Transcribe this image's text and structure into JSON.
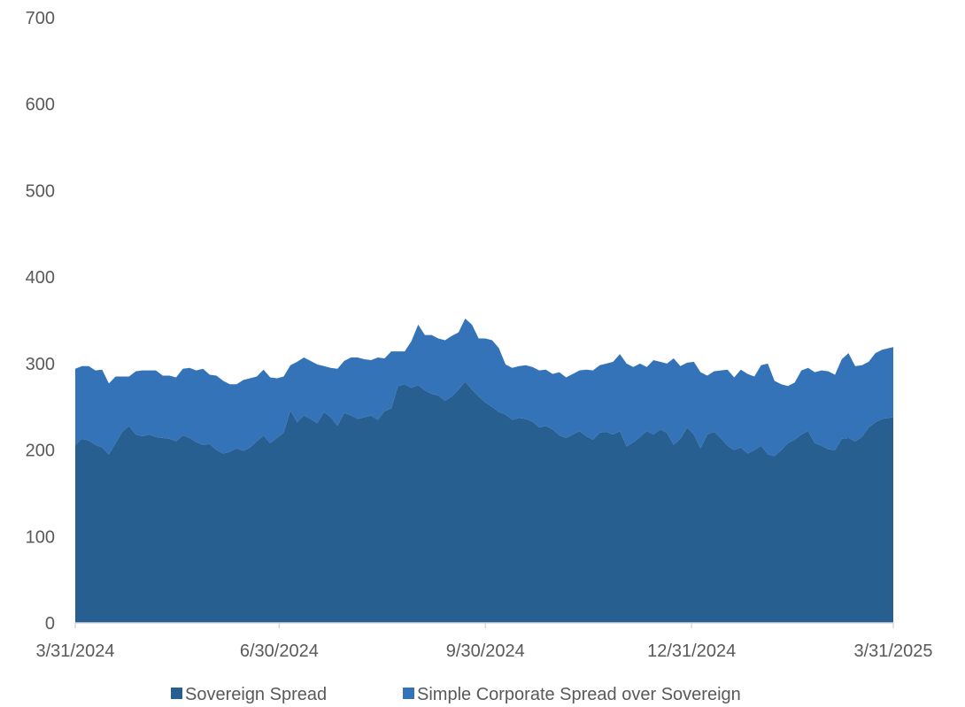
{
  "chart_data": {
    "type": "area",
    "stacked": true,
    "title": "",
    "xlabel": "",
    "ylabel": "",
    "ylim": [
      0,
      700
    ],
    "yticks": [
      0,
      100,
      200,
      300,
      400,
      500,
      600,
      700
    ],
    "xticks": [
      "3/31/2024",
      "6/30/2024",
      "9/30/2024",
      "12/31/2024",
      "3/31/2025"
    ],
    "x_range": [
      "3/31/2024",
      "3/31/2025"
    ],
    "grid": false,
    "legend_position": "bottom",
    "series": [
      {
        "name": "Sovereign Spread",
        "color": "#285f91",
        "points": [
          [
            "3/31/2024",
            206
          ],
          [
            "4/3/2024",
            213
          ],
          [
            "4/6/2024",
            211
          ],
          [
            "4/9/2024",
            206
          ],
          [
            "4/12/2024",
            203
          ],
          [
            "4/15/2024",
            195
          ],
          [
            "4/18/2024",
            208
          ],
          [
            "4/21/2024",
            221
          ],
          [
            "4/24/2024",
            228
          ],
          [
            "4/27/2024",
            218
          ],
          [
            "4/30/2024",
            216
          ],
          [
            "5/3/2024",
            218
          ],
          [
            "5/6/2024",
            215
          ],
          [
            "5/9/2024",
            214
          ],
          [
            "5/12/2024",
            213
          ],
          [
            "5/15/2024",
            210
          ],
          [
            "5/18/2024",
            217
          ],
          [
            "5/21/2024",
            214
          ],
          [
            "5/24/2024",
            209
          ],
          [
            "5/27/2024",
            206
          ],
          [
            "5/30/2024",
            207
          ],
          [
            "6/2/2024",
            200
          ],
          [
            "6/5/2024",
            196
          ],
          [
            "6/8/2024",
            198
          ],
          [
            "6/11/2024",
            202
          ],
          [
            "6/14/2024",
            199
          ],
          [
            "6/17/2024",
            203
          ],
          [
            "6/20/2024",
            210
          ],
          [
            "6/23/2024",
            217
          ],
          [
            "6/26/2024",
            208
          ],
          [
            "6/29/2024",
            214
          ],
          [
            "7/2/2024",
            220
          ],
          [
            "7/5/2024",
            246
          ],
          [
            "7/8/2024",
            232
          ],
          [
            "7/11/2024",
            240
          ],
          [
            "7/14/2024",
            236
          ],
          [
            "7/17/2024",
            231
          ],
          [
            "7/20/2024",
            244
          ],
          [
            "7/23/2024",
            238
          ],
          [
            "7/26/2024",
            228
          ],
          [
            "7/29/2024",
            243
          ],
          [
            "8/1/2024",
            240
          ],
          [
            "8/4/2024",
            236
          ],
          [
            "8/7/2024",
            238
          ],
          [
            "8/10/2024",
            240
          ],
          [
            "8/13/2024",
            235
          ],
          [
            "8/16/2024",
            245
          ],
          [
            "8/19/2024",
            248
          ],
          [
            "8/22/2024",
            274
          ],
          [
            "8/25/2024",
            276
          ],
          [
            "8/28/2024",
            272
          ],
          [
            "8/31/2024",
            275
          ],
          [
            "9/3/2024",
            269
          ],
          [
            "9/6/2024",
            265
          ],
          [
            "9/9/2024",
            263
          ],
          [
            "9/12/2024",
            257
          ],
          [
            "9/15/2024",
            262
          ],
          [
            "9/18/2024",
            270
          ],
          [
            "9/21/2024",
            279
          ],
          [
            "9/24/2024",
            270
          ],
          [
            "9/27/2024",
            262
          ],
          [
            "9/30/2024",
            255
          ],
          [
            "10/3/2024",
            250
          ],
          [
            "10/6/2024",
            244
          ],
          [
            "10/9/2024",
            241
          ],
          [
            "10/12/2024",
            235
          ],
          [
            "10/15/2024",
            237
          ],
          [
            "10/18/2024",
            236
          ],
          [
            "10/21/2024",
            233
          ],
          [
            "10/24/2024",
            226
          ],
          [
            "10/27/2024",
            228
          ],
          [
            "10/30/2024",
            224
          ],
          [
            "11/2/2024",
            217
          ],
          [
            "11/5/2024",
            214
          ],
          [
            "11/8/2024",
            218
          ],
          [
            "11/11/2024",
            222
          ],
          [
            "11/14/2024",
            216
          ],
          [
            "11/17/2024",
            212
          ],
          [
            "11/20/2024",
            220
          ],
          [
            "11/23/2024",
            221
          ],
          [
            "11/26/2024",
            218
          ],
          [
            "11/29/2024",
            222
          ],
          [
            "12/2/2024",
            204
          ],
          [
            "12/5/2024",
            209
          ],
          [
            "12/8/2024",
            215
          ],
          [
            "12/11/2024",
            222
          ],
          [
            "12/14/2024",
            218
          ],
          [
            "12/17/2024",
            224
          ],
          [
            "12/20/2024",
            220
          ],
          [
            "12/23/2024",
            206
          ],
          [
            "12/26/2024",
            213
          ],
          [
            "12/29/2024",
            226
          ],
          [
            "1/1/2025",
            218
          ],
          [
            "1/4/2025",
            202
          ],
          [
            "1/7/2025",
            218
          ],
          [
            "1/10/2025",
            221
          ],
          [
            "1/13/2025",
            214
          ],
          [
            "1/16/2025",
            205
          ],
          [
            "1/19/2025",
            200
          ],
          [
            "1/22/2025",
            203
          ],
          [
            "1/25/2025",
            196
          ],
          [
            "1/28/2025",
            200
          ],
          [
            "1/31/2025",
            205
          ],
          [
            "2/3/2025",
            195
          ],
          [
            "2/6/2025",
            193
          ],
          [
            "2/9/2025",
            200
          ],
          [
            "2/12/2025",
            208
          ],
          [
            "2/15/2025",
            212
          ],
          [
            "2/18/2025",
            218
          ],
          [
            "2/21/2025",
            222
          ],
          [
            "2/24/2025",
            208
          ],
          [
            "2/27/2025",
            205
          ],
          [
            "3/2/2025",
            201
          ],
          [
            "3/5/2025",
            200
          ],
          [
            "3/8/2025",
            213
          ],
          [
            "3/11/2025",
            214
          ],
          [
            "3/14/2025",
            210
          ],
          [
            "3/17/2025",
            215
          ],
          [
            "3/20/2025",
            226
          ],
          [
            "3/23/2025",
            232
          ],
          [
            "3/26/2025",
            236
          ],
          [
            "3/31/2025",
            238
          ]
        ]
      },
      {
        "name": "Simple Corporate Spread over Sovereign",
        "color": "#3573b9",
        "points": [
          [
            "3/31/2024",
            88
          ],
          [
            "4/3/2024",
            84
          ],
          [
            "4/6/2024",
            86
          ],
          [
            "4/9/2024",
            86
          ],
          [
            "4/12/2024",
            90
          ],
          [
            "4/15/2024",
            82
          ],
          [
            "4/18/2024",
            77
          ],
          [
            "4/21/2024",
            64
          ],
          [
            "4/24/2024",
            57
          ],
          [
            "4/27/2024",
            73
          ],
          [
            "4/30/2024",
            76
          ],
          [
            "5/3/2024",
            74
          ],
          [
            "5/6/2024",
            77
          ],
          [
            "5/9/2024",
            72
          ],
          [
            "5/12/2024",
            73
          ],
          [
            "5/15/2024",
            74
          ],
          [
            "5/18/2024",
            77
          ],
          [
            "5/21/2024",
            81
          ],
          [
            "5/24/2024",
            83
          ],
          [
            "5/27/2024",
            88
          ],
          [
            "5/30/2024",
            80
          ],
          [
            "6/2/2024",
            86
          ],
          [
            "6/5/2024",
            84
          ],
          [
            "6/8/2024",
            78
          ],
          [
            "6/11/2024",
            74
          ],
          [
            "6/14/2024",
            82
          ],
          [
            "6/17/2024",
            80
          ],
          [
            "6/20/2024",
            75
          ],
          [
            "6/23/2024",
            76
          ],
          [
            "6/26/2024",
            76
          ],
          [
            "6/29/2024",
            69
          ],
          [
            "7/2/2024",
            65
          ],
          [
            "7/5/2024",
            52
          ],
          [
            "7/8/2024",
            70
          ],
          [
            "7/11/2024",
            67
          ],
          [
            "7/14/2024",
            67
          ],
          [
            "7/17/2024",
            68
          ],
          [
            "7/20/2024",
            53
          ],
          [
            "7/23/2024",
            57
          ],
          [
            "7/26/2024",
            66
          ],
          [
            "7/29/2024",
            60
          ],
          [
            "8/1/2024",
            67
          ],
          [
            "8/4/2024",
            71
          ],
          [
            "8/7/2024",
            67
          ],
          [
            "8/10/2024",
            64
          ],
          [
            "8/13/2024",
            72
          ],
          [
            "8/16/2024",
            61
          ],
          [
            "8/19/2024",
            66
          ],
          [
            "8/22/2024",
            40
          ],
          [
            "8/25/2024",
            38
          ],
          [
            "8/28/2024",
            54
          ],
          [
            "8/31/2024",
            70
          ],
          [
            "9/3/2024",
            64
          ],
          [
            "9/6/2024",
            68
          ],
          [
            "9/9/2024",
            66
          ],
          [
            "9/12/2024",
            70
          ],
          [
            "9/15/2024",
            70
          ],
          [
            "9/18/2024",
            66
          ],
          [
            "9/21/2024",
            73
          ],
          [
            "9/24/2024",
            75
          ],
          [
            "9/27/2024",
            67
          ],
          [
            "9/30/2024",
            74
          ],
          [
            "10/3/2024",
            77
          ],
          [
            "10/6/2024",
            74
          ],
          [
            "10/9/2024",
            58
          ],
          [
            "10/12/2024",
            60
          ],
          [
            "10/15/2024",
            60
          ],
          [
            "10/18/2024",
            62
          ],
          [
            "10/21/2024",
            63
          ],
          [
            "10/24/2024",
            66
          ],
          [
            "10/27/2024",
            65
          ],
          [
            "10/30/2024",
            64
          ],
          [
            "11/2/2024",
            73
          ],
          [
            "11/5/2024",
            70
          ],
          [
            "11/8/2024",
            70
          ],
          [
            "11/11/2024",
            70
          ],
          [
            "11/14/2024",
            77
          ],
          [
            "11/17/2024",
            80
          ],
          [
            "11/20/2024",
            78
          ],
          [
            "11/23/2024",
            79
          ],
          [
            "11/26/2024",
            84
          ],
          [
            "11/29/2024",
            89
          ],
          [
            "12/2/2024",
            96
          ],
          [
            "12/5/2024",
            87
          ],
          [
            "12/8/2024",
            85
          ],
          [
            "12/11/2024",
            74
          ],
          [
            "12/14/2024",
            86
          ],
          [
            "12/17/2024",
            78
          ],
          [
            "12/20/2024",
            80
          ],
          [
            "12/23/2024",
            100
          ],
          [
            "12/26/2024",
            84
          ],
          [
            "12/29/2024",
            75
          ],
          [
            "1/1/2025",
            84
          ],
          [
            "1/4/2025",
            88
          ],
          [
            "1/7/2025",
            68
          ],
          [
            "1/10/2025",
            70
          ],
          [
            "1/13/2025",
            78
          ],
          [
            "1/16/2025",
            88
          ],
          [
            "1/19/2025",
            84
          ],
          [
            "1/22/2025",
            90
          ],
          [
            "1/25/2025",
            92
          ],
          [
            "1/28/2025",
            85
          ],
          [
            "1/31/2025",
            93
          ],
          [
            "2/3/2025",
            105
          ],
          [
            "2/6/2025",
            87
          ],
          [
            "2/9/2025",
            76
          ],
          [
            "2/12/2025",
            66
          ],
          [
            "2/15/2025",
            66
          ],
          [
            "2/18/2025",
            74
          ],
          [
            "2/21/2025",
            73
          ],
          [
            "2/24/2025",
            82
          ],
          [
            "2/27/2025",
            87
          ],
          [
            "3/2/2025",
            90
          ],
          [
            "3/5/2025",
            87
          ],
          [
            "3/8/2025",
            92
          ],
          [
            "3/11/2025",
            98
          ],
          [
            "3/14/2025",
            87
          ],
          [
            "3/17/2025",
            83
          ],
          [
            "3/20/2025",
            76
          ],
          [
            "3/23/2025",
            80
          ],
          [
            "3/26/2025",
            80
          ],
          [
            "3/31/2025",
            81
          ]
        ]
      }
    ]
  }
}
